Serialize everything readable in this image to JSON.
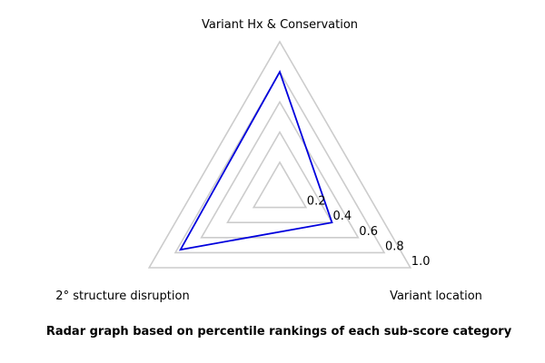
{
  "chart_data": {
    "type": "radar",
    "axes": [
      "Variant Hx & Conservation",
      "Variant location",
      "2° structure disruption"
    ],
    "ticks": [
      "0.2",
      "0.4",
      "0.6",
      "0.8",
      "1.0"
    ],
    "tick_values": [
      0.2,
      0.4,
      0.6,
      0.8,
      1.0
    ],
    "rlim": [
      0,
      1.0
    ],
    "series": [
      {
        "values": [
          0.8,
          0.4,
          0.76
        ],
        "color": "#0000dd"
      }
    ],
    "grid_color": "#cccccc",
    "grid": true,
    "legend": false,
    "caption": "Radar graph based on percentile rankings of each sub-score category"
  }
}
